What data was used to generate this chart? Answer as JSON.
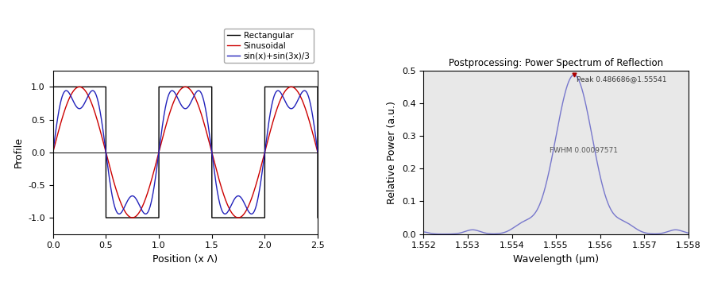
{
  "left_xlim": [
    0.0,
    2.5
  ],
  "left_ylim": [
    -1.25,
    1.25
  ],
  "left_xlabel": "Position (x Λ)",
  "left_ylabel": "Profile",
  "left_xticks": [
    0.0,
    0.5,
    1.0,
    1.5,
    2.0,
    2.5
  ],
  "left_yticks": [
    -1.0,
    -0.5,
    0.0,
    0.5,
    1.0
  ],
  "legend_labels": [
    "Rectangular",
    "Sinusoidal",
    "sin(x)+sin(3x)/3"
  ],
  "rect_color": "#000000",
  "sin_color": "#cc0000",
  "sin3_color": "#2222bb",
  "right_title": "Postprocessing: Power Spectrum of Reflection",
  "right_xlabel": "Wavelength (μm)",
  "right_ylabel": "Relative Power (a.u.)",
  "right_xlim": [
    1.552,
    1.558
  ],
  "right_ylim": [
    0.0,
    0.5
  ],
  "right_xticks": [
    1.552,
    1.553,
    1.554,
    1.555,
    1.556,
    1.557,
    1.558
  ],
  "right_yticks": [
    0.0,
    0.1,
    0.2,
    0.3,
    0.4,
    0.5
  ],
  "peak_wl": 1.55541,
  "peak_val": 0.486686,
  "fwhm": 0.00097571,
  "peak_label": "Peak 0.486686@1.55541",
  "fwhm_label": "FWHM 0.00097571",
  "spectrum_color": "#7777cc",
  "peak_marker_color": "#aa0000",
  "bg_color": "#e8e8e8"
}
